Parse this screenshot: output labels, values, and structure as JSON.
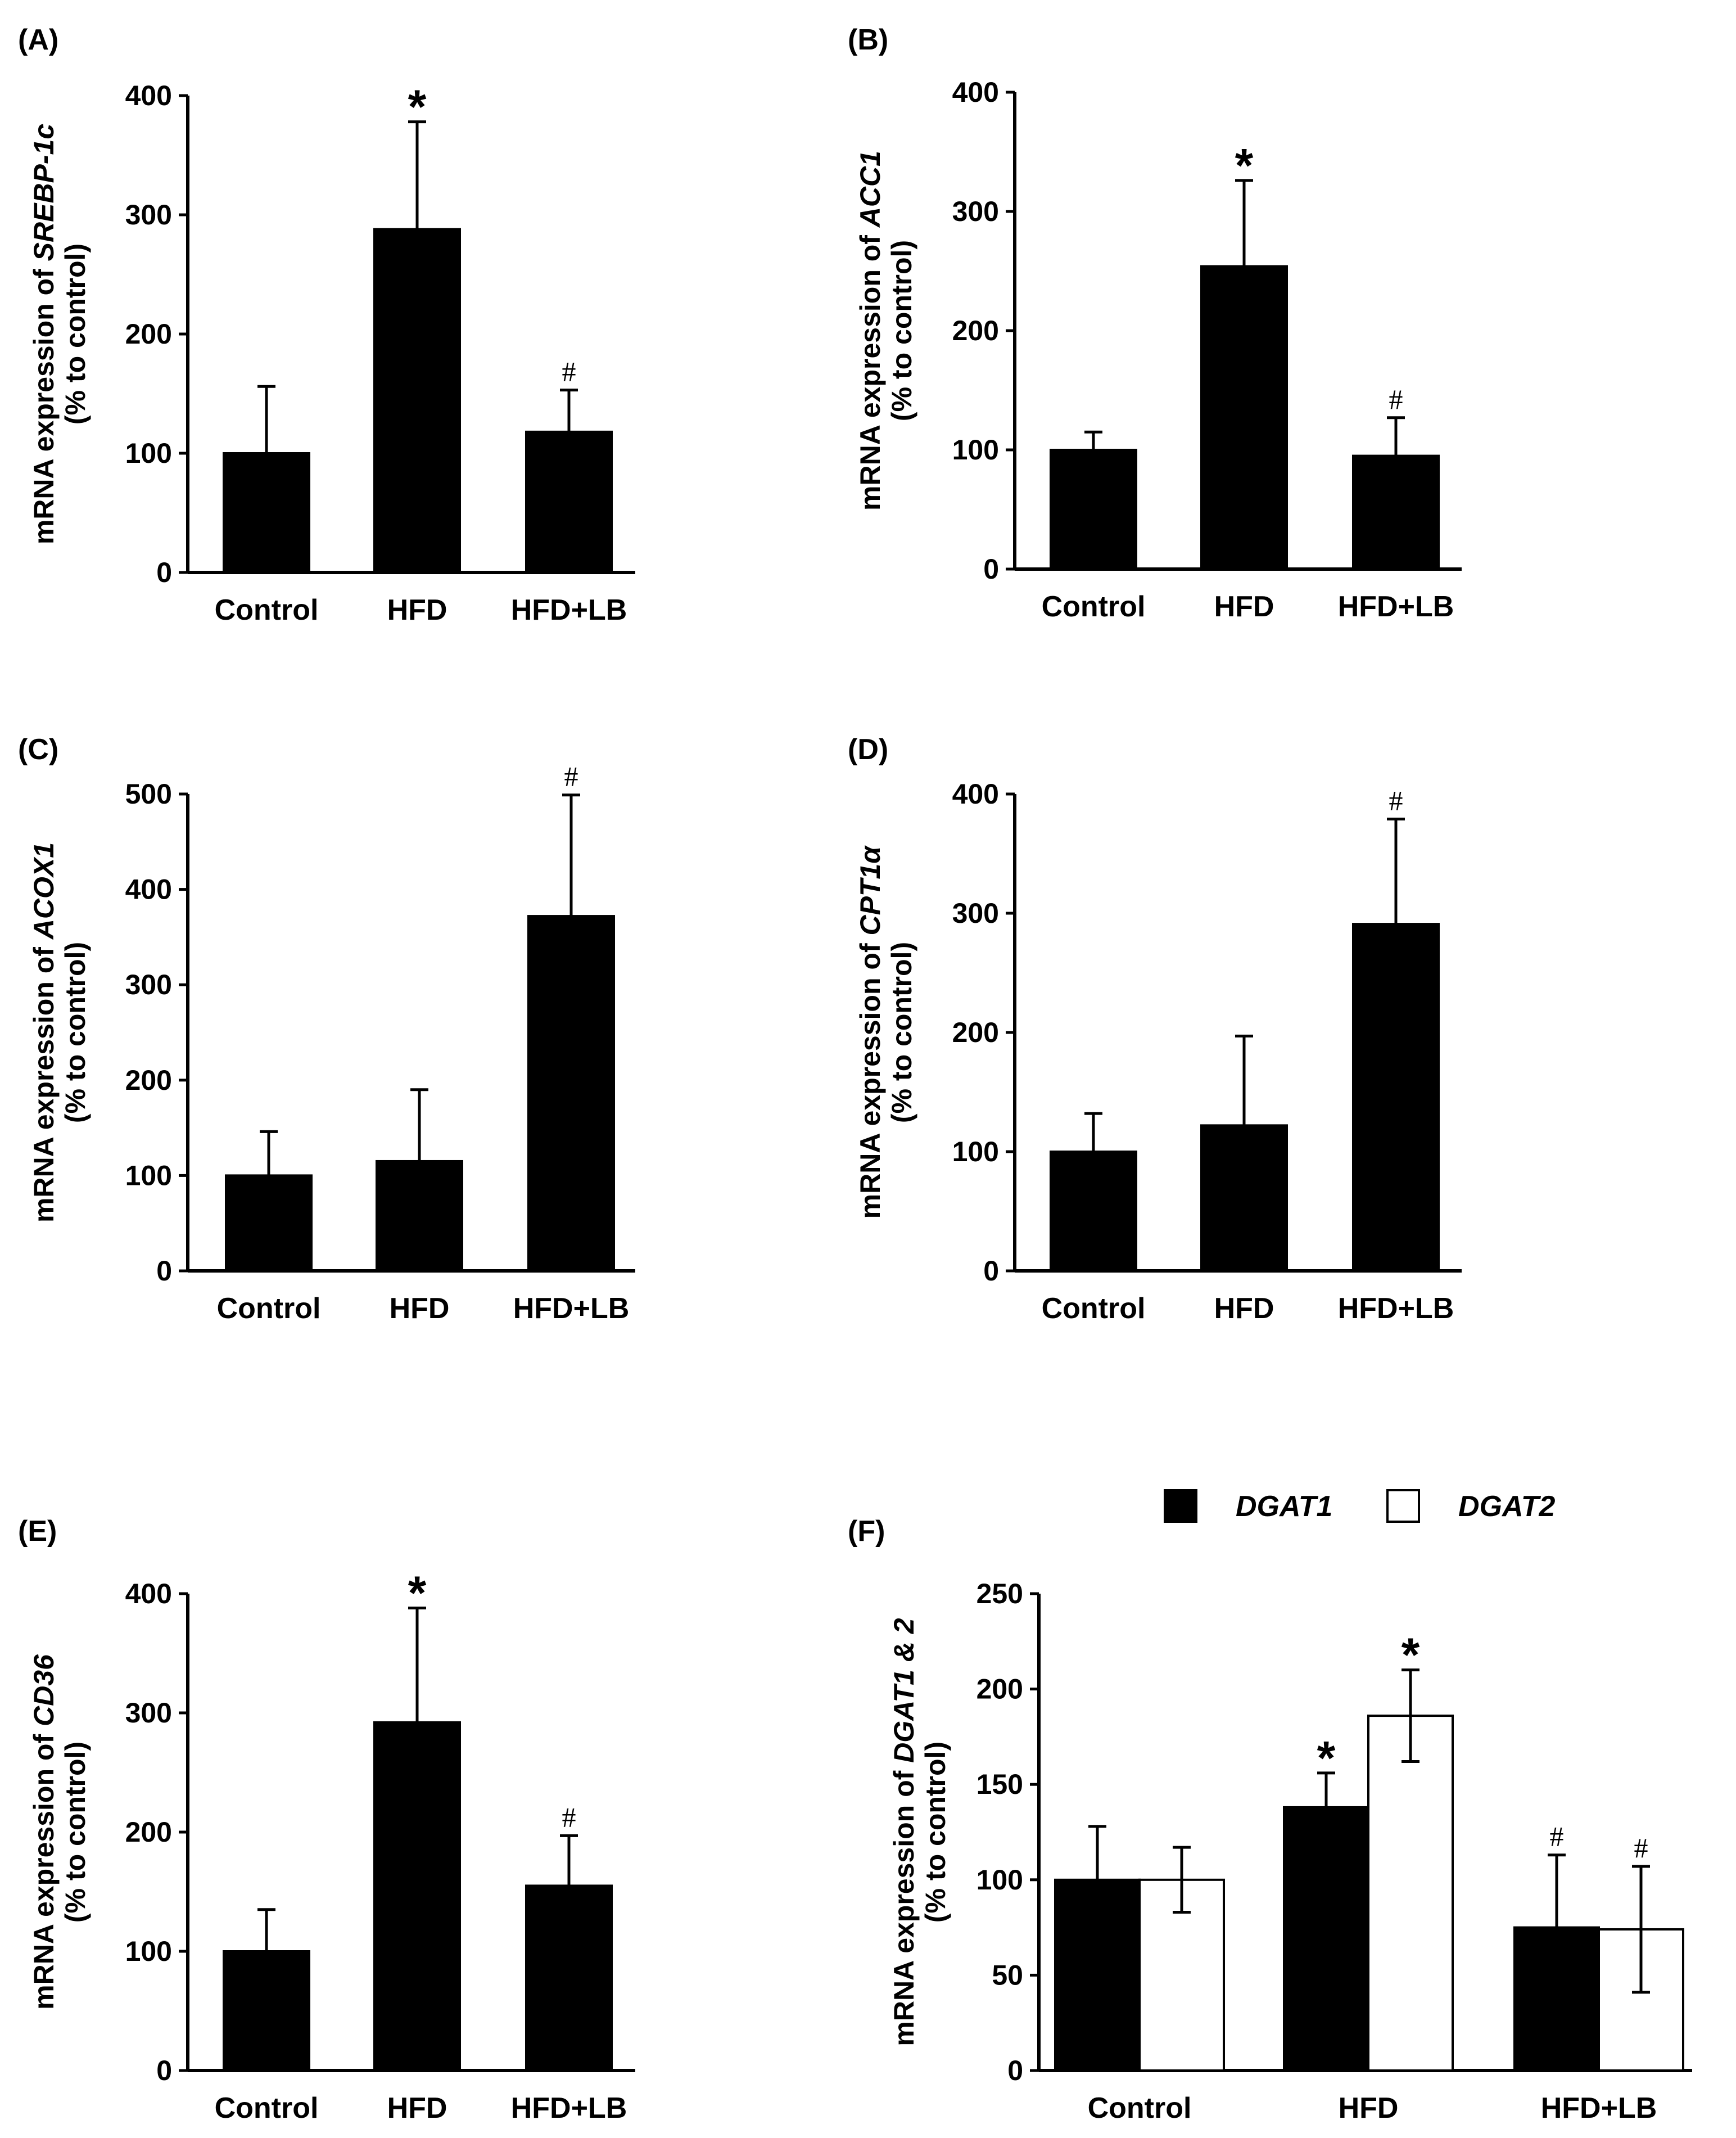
{
  "figure": {
    "description_labels": "Panels A–F"
  },
  "colors": {
    "dark_bar": "#000000",
    "light_bar": "#ffffff",
    "axis": "#000000"
  },
  "chart_data": [
    {
      "id": "A",
      "panel_label": "(A)",
      "type": "bar",
      "categories": [
        "Control",
        "HFD",
        "HFD+LB"
      ],
      "ylim": [
        0,
        400
      ],
      "yticks": [
        0,
        100,
        200,
        300,
        400
      ],
      "ylabel": {
        "prefix": "mRNA expression of ",
        "gene": "SREBP-1c",
        "line2": "(% to control)"
      },
      "series": [
        {
          "name": "mRNA",
          "fill": "#000000",
          "values": [
            100,
            288,
            118
          ],
          "errors": [
            56,
            90,
            35
          ]
        }
      ],
      "markers": [
        {
          "series": 0,
          "index": 1,
          "text": "*"
        },
        {
          "series": 0,
          "index": 2,
          "text": "#"
        }
      ]
    },
    {
      "id": "B",
      "panel_label": "(B)",
      "type": "bar",
      "categories": [
        "Control",
        "HFD",
        "HFD+LB"
      ],
      "ylim": [
        0,
        400
      ],
      "yticks": [
        0,
        100,
        200,
        300,
        400
      ],
      "ylabel": {
        "prefix": "mRNA expression of ",
        "gene": "ACC1",
        "line2": "(% to control)"
      },
      "series": [
        {
          "name": "mRNA",
          "fill": "#000000",
          "values": [
            100,
            254,
            95
          ],
          "errors": [
            15,
            72,
            32
          ]
        }
      ],
      "markers": [
        {
          "series": 0,
          "index": 1,
          "text": "*"
        },
        {
          "series": 0,
          "index": 2,
          "text": "#"
        }
      ]
    },
    {
      "id": "C",
      "panel_label": "(C)",
      "type": "bar",
      "categories": [
        "Control",
        "HFD",
        "HFD+LB"
      ],
      "ylim": [
        0,
        500
      ],
      "yticks": [
        0,
        100,
        200,
        300,
        400,
        500
      ],
      "ylabel": {
        "prefix": "mRNA expression of ",
        "gene": "ACOX1",
        "line2": "(% to control)"
      },
      "series": [
        {
          "name": "mRNA",
          "fill": "#000000",
          "values": [
            100,
            115,
            372
          ],
          "errors": [
            46,
            75,
            127
          ]
        }
      ],
      "markers": [
        {
          "series": 0,
          "index": 2,
          "text": "#"
        }
      ]
    },
    {
      "id": "D",
      "panel_label": "(D)",
      "type": "bar",
      "categories": [
        "Control",
        "HFD",
        "HFD+LB"
      ],
      "ylim": [
        0,
        400
      ],
      "yticks": [
        0,
        100,
        200,
        300,
        400
      ],
      "ylabel": {
        "prefix": "mRNA expression of ",
        "gene": "CPT1α",
        "line2": "(% to control)"
      },
      "series": [
        {
          "name": "mRNA",
          "fill": "#000000",
          "values": [
            100,
            122,
            291
          ],
          "errors": [
            32,
            75,
            88
          ]
        }
      ],
      "markers": [
        {
          "series": 0,
          "index": 2,
          "text": "#"
        }
      ]
    },
    {
      "id": "E",
      "panel_label": "(E)",
      "type": "bar",
      "categories": [
        "Control",
        "HFD",
        "HFD+LB"
      ],
      "ylim": [
        0,
        400
      ],
      "yticks": [
        0,
        100,
        200,
        300,
        400
      ],
      "ylabel": {
        "prefix": "mRNA expression of ",
        "gene": "CD36",
        "line2": "(% to control)"
      },
      "series": [
        {
          "name": "mRNA",
          "fill": "#000000",
          "values": [
            100,
            292,
            155
          ],
          "errors": [
            35,
            96,
            42
          ]
        }
      ],
      "markers": [
        {
          "series": 0,
          "index": 1,
          "text": "*"
        },
        {
          "series": 0,
          "index": 2,
          "text": "#"
        }
      ]
    },
    {
      "id": "F",
      "panel_label": "(F)",
      "type": "bar",
      "categories": [
        "Control",
        "HFD",
        "HFD+LB"
      ],
      "ylim": [
        0,
        250
      ],
      "yticks": [
        0,
        50,
        100,
        150,
        200,
        250
      ],
      "ylabel": {
        "prefix": "mRNA expression of ",
        "gene": "DGAT1 & 2",
        "line2": "(% to control)"
      },
      "legend": {
        "position": "top-center"
      },
      "series": [
        {
          "name": "DGAT1",
          "fill": "#000000",
          "values": [
            100,
            138,
            75
          ],
          "errors": [
            28,
            18,
            38
          ]
        },
        {
          "name": "DGAT2",
          "fill": "#ffffff",
          "values": [
            100,
            186,
            74
          ],
          "errors": [
            17,
            24,
            33
          ]
        }
      ],
      "markers": [
        {
          "series": 0,
          "index": 1,
          "text": "*"
        },
        {
          "series": 1,
          "index": 1,
          "text": "*"
        },
        {
          "series": 0,
          "index": 2,
          "text": "#"
        },
        {
          "series": 1,
          "index": 2,
          "text": "#"
        }
      ]
    }
  ]
}
